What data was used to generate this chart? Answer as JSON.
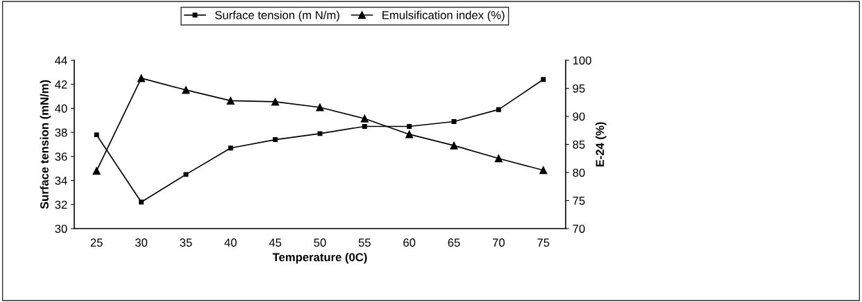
{
  "chart_data": {
    "type": "line",
    "xlabel": "Temperature (0C)",
    "ylabel": "Surface tension (mN/m)",
    "y2label": "E-24 (%)",
    "categories": [
      "25",
      "30",
      "35",
      "40",
      "45",
      "50",
      "55",
      "60",
      "65",
      "70",
      "75"
    ],
    "series": [
      {
        "name": "Surface tension (m N/m)",
        "color": "#000000",
        "marker": "square",
        "values": [
          37.8,
          32.2,
          34.5,
          36.7,
          37.4,
          37.9,
          38.5,
          38.5,
          38.9,
          39.9,
          42.4
        ]
      },
      {
        "name": "Emulsification index (%)",
        "color": "#000000",
        "marker": "triangle",
        "axis": "y2",
        "values": [
          80.3,
          96.8,
          94.7,
          92.8,
          92.6,
          91.6,
          89.6,
          86.8,
          84.8,
          82.5,
          80.4
        ]
      }
    ],
    "ylim": [
      30,
      44
    ],
    "yticks": [
      30,
      32,
      34,
      36,
      38,
      40,
      42,
      44
    ],
    "y2lim": [
      70,
      100
    ],
    "y2ticks": [
      70,
      75,
      80,
      85,
      90,
      95,
      100
    ],
    "legend": "top",
    "grid": false,
    "line_style": "solid"
  }
}
